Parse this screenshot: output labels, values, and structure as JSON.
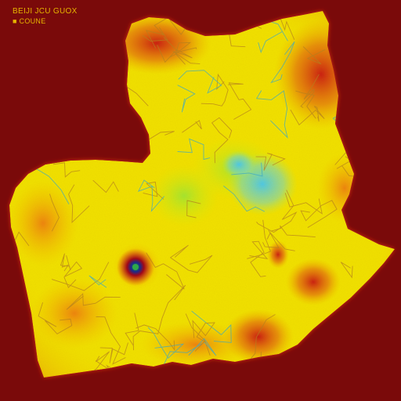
{
  "header": {
    "line1": "BEIJI JCU GUOX",
    "line2": "■ COUNE"
  },
  "colors": {
    "background": "#7a0a0a",
    "map_edge": "#d42a12",
    "low": "#d21818",
    "mid": "#f2e300",
    "high": "#24c8ff",
    "border_lines": "#b5801e",
    "label": "#e6b400"
  },
  "hotspot": {
    "label": ""
  }
}
